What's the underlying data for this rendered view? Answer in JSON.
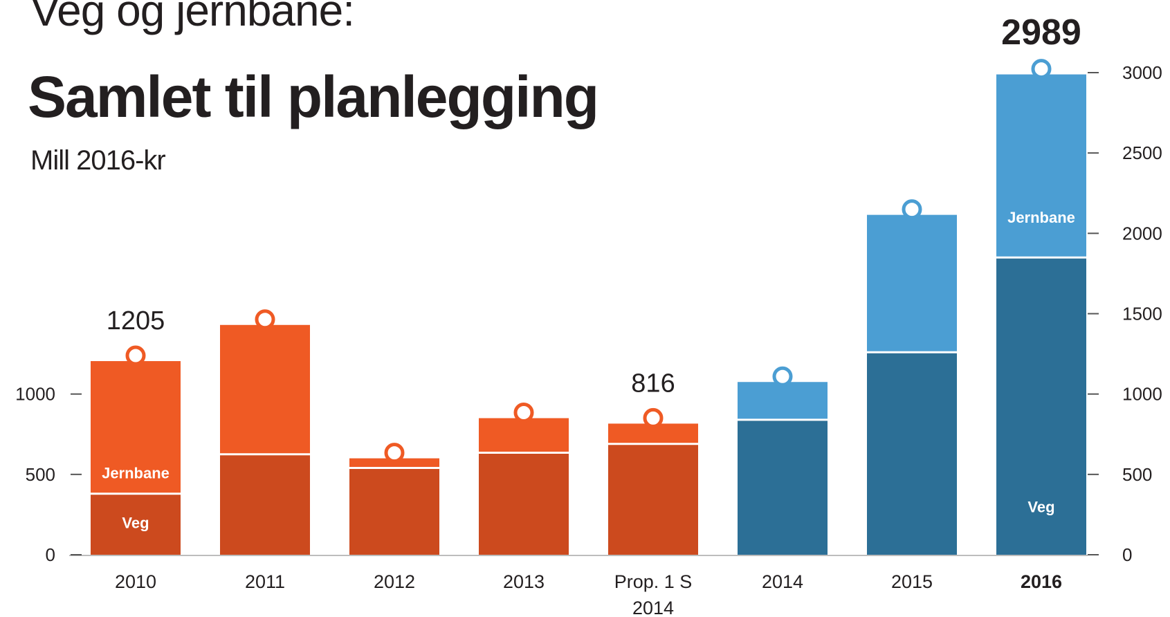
{
  "header": {
    "title_top": "Veg og jernbane:",
    "title_main": "Samlet til planlegging",
    "subtitle": "Mill 2016-kr"
  },
  "chart_data": {
    "type": "bar",
    "stacked": true,
    "categories": [
      "2010",
      "2011",
      "2012",
      "2013",
      "Prop. 1 S\n2014",
      "2014",
      "2015",
      "2016"
    ],
    "series": [
      {
        "name": "Veg",
        "values": [
          380,
          625,
          540,
          635,
          690,
          840,
          1260,
          1850
        ]
      },
      {
        "name": "Jernbane",
        "values": [
          825,
          805,
          60,
          215,
          126,
          235,
          855,
          1139
        ]
      }
    ],
    "totals": [
      1205,
      1430,
      600,
      850,
      816,
      1075,
      2115,
      2989
    ],
    "value_labels": {
      "0": "1205",
      "4": "816",
      "7": "2989"
    },
    "ylim": [
      0,
      3000
    ],
    "y_ticks_left": [
      0,
      500,
      1000
    ],
    "y_ticks_right": [
      0,
      500,
      1000,
      1500,
      2000,
      2500,
      3000
    ],
    "inline_labels": {
      "jernbane": "Jernbane",
      "veg": "Veg"
    },
    "bold_category": "2016",
    "colors": {
      "orange_veg": "#cc4a1e",
      "orange_jernbane": "#ef5a24",
      "blue_veg": "#2c6f96",
      "blue_jernbane": "#4b9ed3",
      "text": "#231f20",
      "axis": "#555555"
    }
  }
}
